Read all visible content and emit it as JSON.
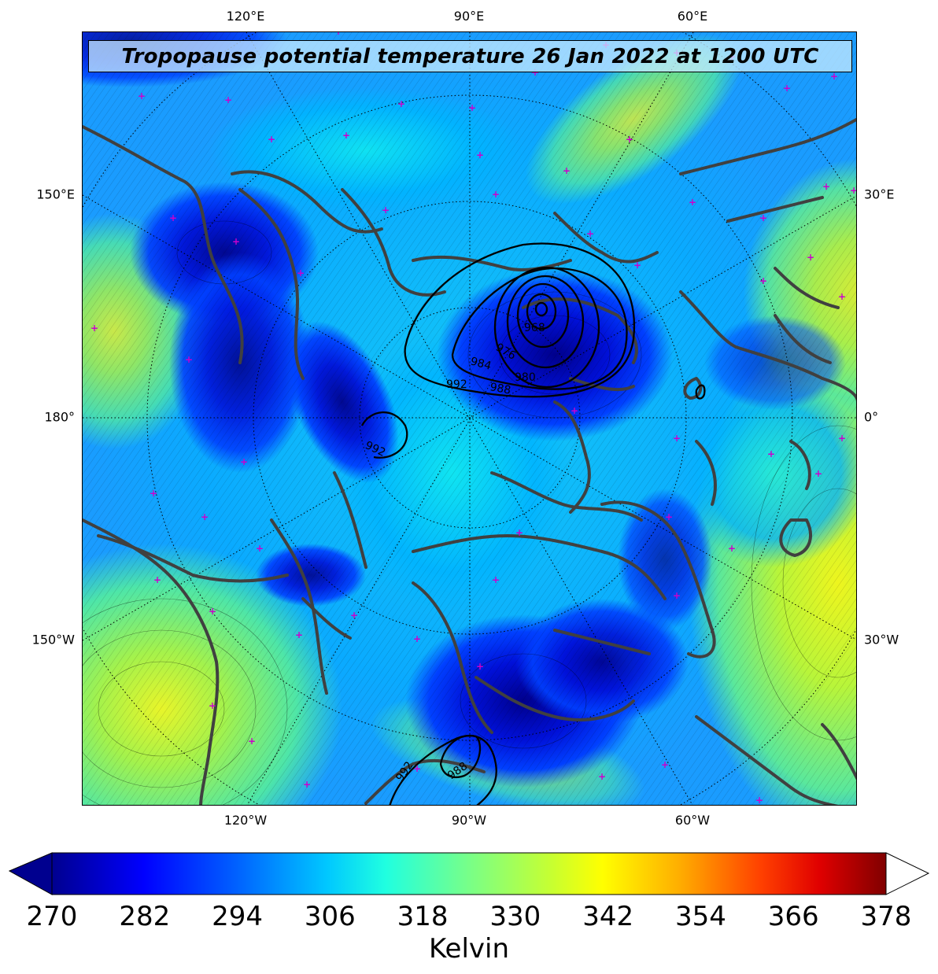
{
  "title": "Tropopause potential temperature 26 Jan 2022 at 1200 UTC",
  "top_lon_labels": [
    "120°E",
    "90°E",
    "60°E"
  ],
  "bottom_lon_labels": [
    "120°W",
    "90°W",
    "60°W"
  ],
  "left_labels": [
    "150°E",
    "180°",
    "150°W"
  ],
  "right_labels": [
    "30°E",
    "0°",
    "30°W"
  ],
  "pressure_labels": [
    "968",
    "976",
    "984",
    "988",
    "980",
    "992",
    "992",
    "992",
    "988"
  ],
  "colorbar": {
    "ticks": [
      "270",
      "282",
      "294",
      "306",
      "318",
      "330",
      "342",
      "354",
      "366",
      "378"
    ],
    "label": "Kelvin",
    "min": 270,
    "max": 378,
    "extend": "both",
    "colormap": "jet"
  },
  "colors": {
    "coastline": "#404040",
    "marker": "#cc00cc",
    "isobar": "#000000"
  }
}
